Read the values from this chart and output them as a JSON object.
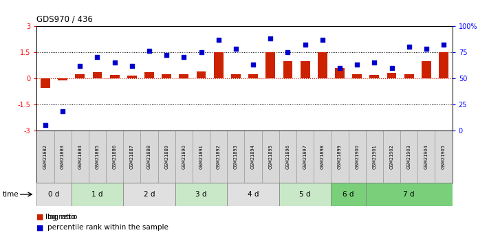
{
  "title": "GDS970 / 436",
  "samples": [
    "GSM21882",
    "GSM21883",
    "GSM21884",
    "GSM21885",
    "GSM21886",
    "GSM21887",
    "GSM21888",
    "GSM21889",
    "GSM21890",
    "GSM21891",
    "GSM21892",
    "GSM21893",
    "GSM21894",
    "GSM21895",
    "GSM21896",
    "GSM21897",
    "GSM21898",
    "GSM21899",
    "GSM21900",
    "GSM21901",
    "GSM21902",
    "GSM21903",
    "GSM21904",
    "GSM21905"
  ],
  "log_ratio": [
    -0.55,
    -0.12,
    0.25,
    0.35,
    0.2,
    0.15,
    0.35,
    0.22,
    0.22,
    0.4,
    1.5,
    0.22,
    0.22,
    1.5,
    1.0,
    1.0,
    1.48,
    0.6,
    0.25,
    0.18,
    0.32,
    0.22,
    1.0,
    1.48
  ],
  "percentile": [
    5,
    18,
    62,
    70,
    65,
    62,
    76,
    72,
    70,
    75,
    87,
    78,
    63,
    88,
    75,
    82,
    87,
    60,
    63,
    65,
    60,
    80,
    78,
    82
  ],
  "time_groups": [
    {
      "label": "0 d",
      "start": 0,
      "end": 2,
      "color": "#e0e0e0"
    },
    {
      "label": "1 d",
      "start": 2,
      "end": 5,
      "color": "#c8e8c8"
    },
    {
      "label": "2 d",
      "start": 5,
      "end": 8,
      "color": "#e0e0e0"
    },
    {
      "label": "3 d",
      "start": 8,
      "end": 11,
      "color": "#c8e8c8"
    },
    {
      "label": "4 d",
      "start": 11,
      "end": 14,
      "color": "#e0e0e0"
    },
    {
      "label": "5 d",
      "start": 14,
      "end": 17,
      "color": "#c8e8c8"
    },
    {
      "label": "6 d",
      "start": 17,
      "end": 19,
      "color": "#7ad07a"
    },
    {
      "label": "7 d",
      "start": 19,
      "end": 24,
      "color": "#7ad07a"
    }
  ],
  "sample_row_color": "#d8d8d8",
  "bar_color": "#cc2200",
  "dot_color": "#0000cc",
  "ylim_left": [
    -3,
    3
  ],
  "ylim_right": [
    0,
    100
  ],
  "ylabel_left_ticks": [
    -3,
    -1.5,
    0,
    1.5,
    3
  ],
  "ylabel_right_ticks": [
    0,
    25,
    50,
    75,
    100
  ],
  "ylabel_right_labels": [
    "0",
    "25",
    "50",
    "75",
    "100%"
  ],
  "legend_items": [
    "log ratio",
    "percentile rank within the sample"
  ],
  "legend_colors": [
    "#cc2200",
    "#0000cc"
  ]
}
